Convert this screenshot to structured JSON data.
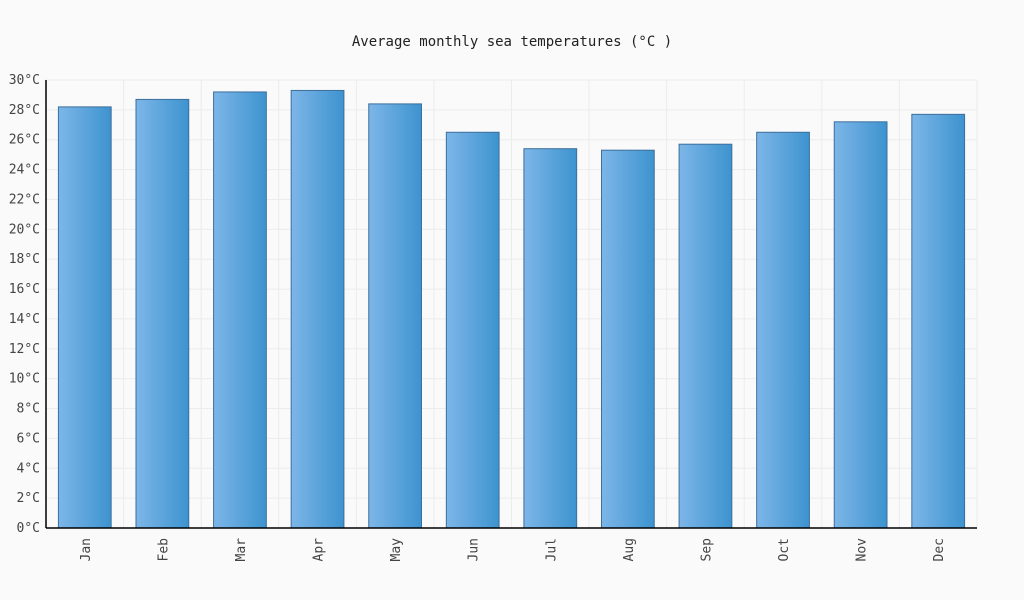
{
  "chart_data": {
    "type": "bar",
    "title": "Average monthly  sea temperatures (°C )",
    "xlabel": "",
    "ylabel": "",
    "categories": [
      "Jan",
      "Feb",
      "Mar",
      "Apr",
      "May",
      "Jun",
      "Jul",
      "Aug",
      "Sep",
      "Oct",
      "Nov",
      "Dec"
    ],
    "values": [
      28.2,
      28.7,
      29.2,
      29.3,
      28.4,
      26.5,
      25.4,
      25.3,
      25.7,
      26.5,
      27.2,
      27.7
    ],
    "ylim": [
      0,
      30
    ],
    "ytick_step": 2,
    "ytick_labels": [
      "0°C",
      "2°C",
      "4°C",
      "6°C",
      "8°C",
      "10°C",
      "12°C",
      "14°C",
      "16°C",
      "18°C",
      "20°C",
      "22°C",
      "24°C",
      "26°C",
      "28°C",
      "30°C"
    ],
    "grid": true,
    "legend": "none",
    "colors": {
      "bar_light": "#7db6e8",
      "bar_dark": "#3d93cf",
      "bar_border": "#3d6f9c",
      "grid": "#ececec",
      "background": "#fafafa"
    }
  }
}
